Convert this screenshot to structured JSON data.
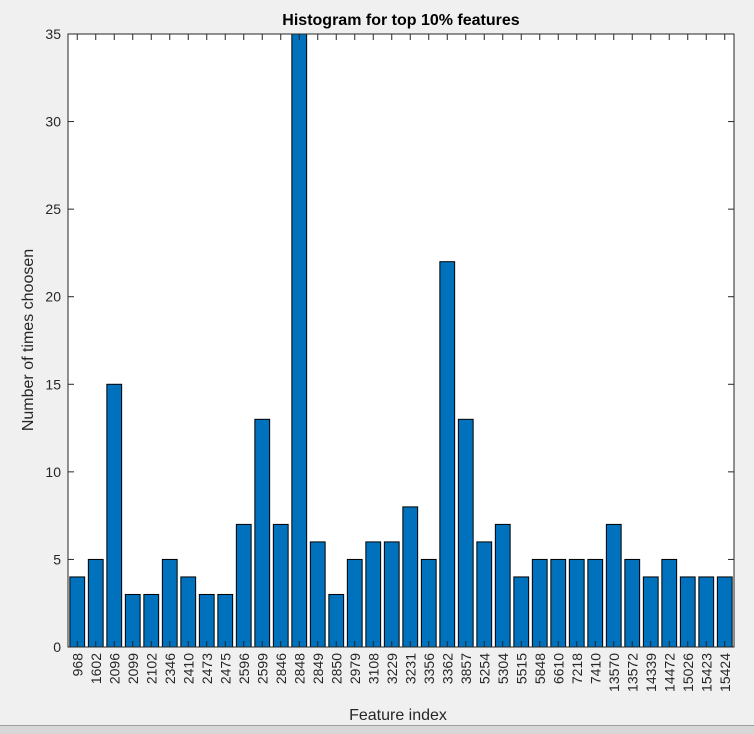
{
  "chart_data": {
    "type": "bar",
    "title": "Histogram for top 10% features",
    "xlabel": "Feature index",
    "ylabel": "Number of times choosen",
    "ylim": [
      0,
      35
    ],
    "yticks": [
      0,
      5,
      10,
      15,
      20,
      25,
      30,
      35
    ],
    "grid": false,
    "bar_color": "#0072bd",
    "categories": [
      "968",
      "1602",
      "2096",
      "2099",
      "2102",
      "2346",
      "2410",
      "2473",
      "2475",
      "2596",
      "2599",
      "2846",
      "2848",
      "2849",
      "2850",
      "2979",
      "3108",
      "3229",
      "3231",
      "3356",
      "3362",
      "3857",
      "5254",
      "5304",
      "5515",
      "5848",
      "6610",
      "7218",
      "7410",
      "13570",
      "13572",
      "14339",
      "14472",
      "15026",
      "15423",
      "15424"
    ],
    "values": [
      4,
      5,
      15,
      3,
      3,
      5,
      4,
      3,
      3,
      7,
      13,
      7,
      35,
      6,
      3,
      5,
      6,
      6,
      8,
      5,
      22,
      13,
      6,
      7,
      4,
      5,
      5,
      5,
      5,
      7,
      5,
      4,
      5,
      4,
      4,
      4
    ]
  }
}
